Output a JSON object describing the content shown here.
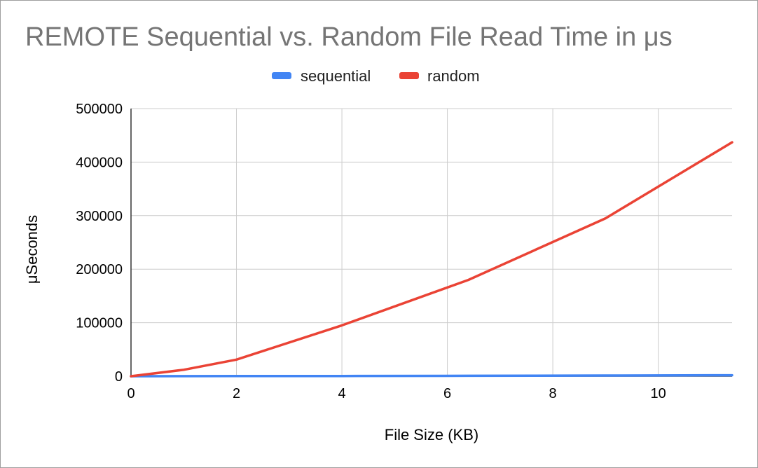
{
  "chart_data": {
    "type": "line",
    "title": "REMOTE Sequential vs. Random File Read Time in μs",
    "xlabel": "File Size (KB)",
    "ylabel": "μSeconds",
    "xlim": [
      0,
      11.4
    ],
    "ylim": [
      0,
      500000
    ],
    "x_ticks": [
      0,
      2,
      4,
      6,
      8,
      10
    ],
    "y_ticks": [
      0,
      100000,
      200000,
      300000,
      400000,
      500000
    ],
    "grid": true,
    "legend_position": "top",
    "series": [
      {
        "name": "sequential",
        "color": "#4285f4",
        "x": [
          0,
          1,
          2,
          4,
          6.4,
          9,
          11.4
        ],
        "y": [
          0,
          100,
          200,
          400,
          800,
          1300,
          1800
        ]
      },
      {
        "name": "random",
        "color": "#ea4335",
        "x": [
          0,
          1,
          2,
          4,
          6.4,
          9,
          11.4
        ],
        "y": [
          0,
          12000,
          31000,
          95000,
          180000,
          295000,
          437000
        ]
      }
    ]
  }
}
